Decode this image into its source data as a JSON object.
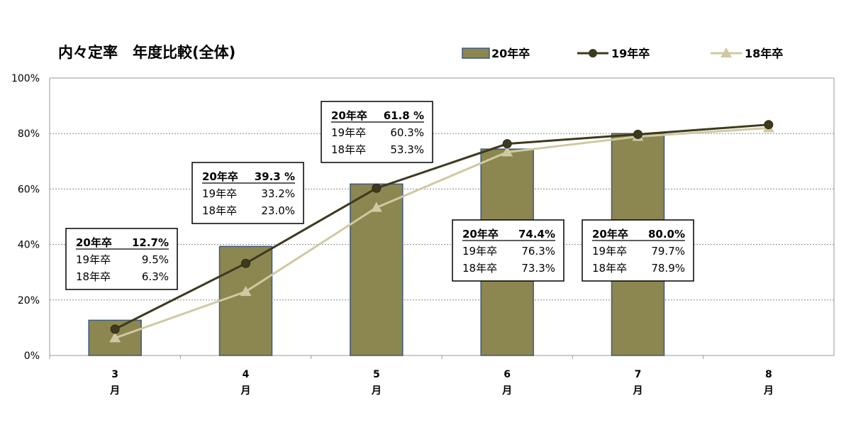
{
  "chart_data": {
    "type": "bar",
    "title": "内々定率　年度比較(全体)",
    "categories": [
      "3",
      "4",
      "5",
      "6",
      "7",
      "8"
    ],
    "category_suffix": "月",
    "ylim": [
      0,
      100
    ],
    "yticks": [
      "0%",
      "20%",
      "40%",
      "60%",
      "80%",
      "100%"
    ],
    "grid": true,
    "legend": "top-right",
    "series": [
      {
        "name": "20年卒",
        "type": "bar",
        "color": "#8c8650",
        "values": [
          12.7,
          39.3,
          61.8,
          74.4,
          80.0,
          null
        ]
      },
      {
        "name": "19年卒",
        "type": "line",
        "marker": "circle",
        "color": "#3d3a1e",
        "values": [
          9.5,
          33.2,
          60.3,
          76.3,
          79.7,
          83.2
        ]
      },
      {
        "name": "18年卒",
        "type": "line",
        "marker": "triangle",
        "color": "#cfc9a3",
        "values": [
          6.3,
          23.0,
          53.3,
          73.3,
          78.9,
          82.0
        ]
      }
    ],
    "annotations": [
      {
        "category": "3",
        "lines": [
          [
            "20年卒",
            "12.7%"
          ],
          [
            "19年卒",
            "9.5%"
          ],
          [
            "18年卒",
            "6.3%"
          ]
        ]
      },
      {
        "category": "4",
        "lines": [
          [
            "20年卒",
            "39.3 %"
          ],
          [
            "19年卒",
            "33.2%"
          ],
          [
            "18年卒",
            "23.0%"
          ]
        ]
      },
      {
        "category": "5",
        "lines": [
          [
            "20年卒",
            "61.8 %"
          ],
          [
            "19年卒",
            "60.3%"
          ],
          [
            "18年卒",
            "53.3%"
          ]
        ]
      },
      {
        "category": "6",
        "lines": [
          [
            "20年卒",
            "74.4%"
          ],
          [
            "19年卒",
            "76.3%"
          ],
          [
            "18年卒",
            "73.3%"
          ]
        ]
      },
      {
        "category": "7",
        "lines": [
          [
            "20年卒",
            "80.0%"
          ],
          [
            "19年卒",
            "79.7%"
          ],
          [
            "18年卒",
            "78.9%"
          ]
        ]
      }
    ]
  }
}
